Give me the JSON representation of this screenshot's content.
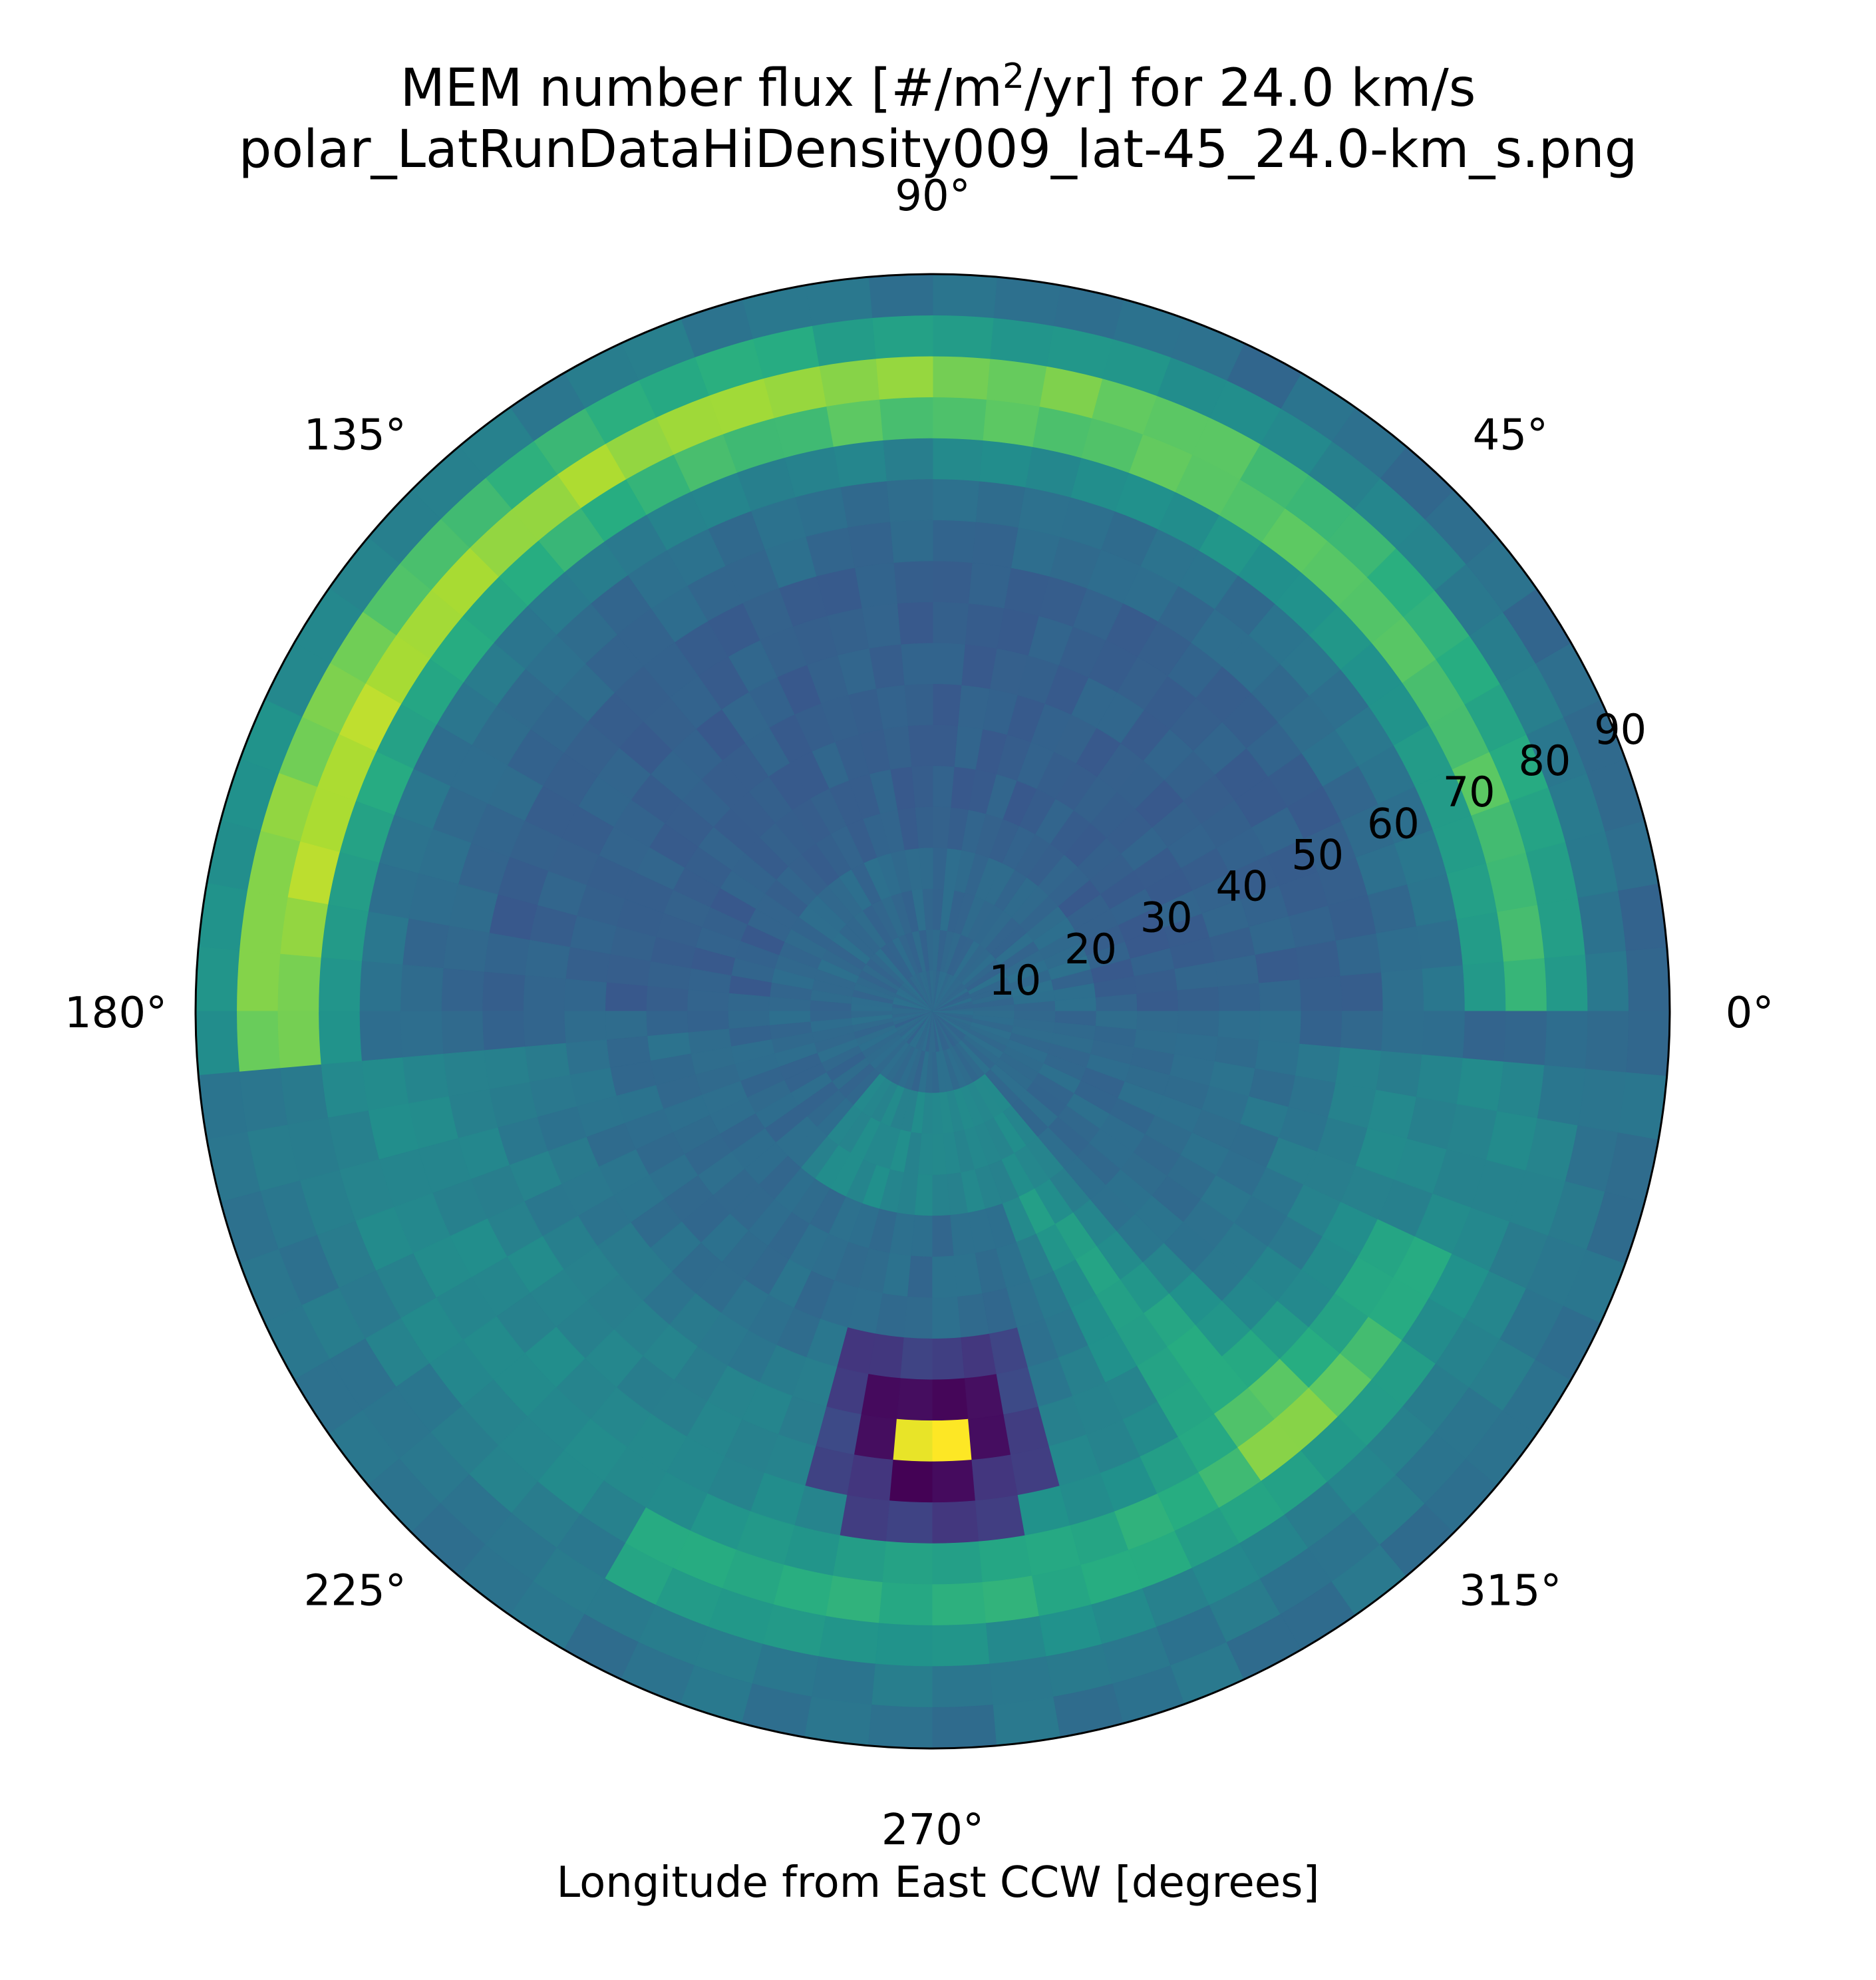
{
  "chart_data": {
    "type": "heatmap",
    "projection": "polar",
    "title_prefix": "MEM number flux [#/m",
    "title_sup": "2",
    "title_suffix": "/yr] for 24.0 km/s",
    "subtitle": "polar_LatRunDataHiDensity009_lat-45_24.0-km_s.png",
    "xlabel": "Longitude from East CCW [degrees]",
    "theta_tick_labels": [
      "0°",
      "45°",
      "90°",
      "135°",
      "180°",
      "225°",
      "270°",
      "315°"
    ],
    "theta_ticks_deg": [
      0,
      45,
      90,
      135,
      180,
      225,
      270,
      315
    ],
    "r_tick_labels": [
      "10",
      "20",
      "30",
      "40",
      "50",
      "60",
      "70",
      "80",
      "90"
    ],
    "r_ticks": [
      10,
      20,
      30,
      40,
      50,
      60,
      70,
      80,
      90
    ],
    "r_range": [
      0,
      90
    ],
    "theta_range": [
      0,
      360
    ],
    "bin_size_deg": 5,
    "colormap": "viridis",
    "grid": false,
    "features": [
      {
        "name": "ring band",
        "r_range": [
          60,
          85
        ],
        "theta_range": [
          0,
          180
        ],
        "peak_theta": 170,
        "peak_r": 80,
        "relative_value": 0.88
      },
      {
        "name": "apex spot",
        "theta": 270,
        "r": 52,
        "relative_value": 1.0
      },
      {
        "name": "apex surrounding low",
        "theta": 270,
        "r": 52,
        "radius": 12,
        "relative_value": 0.0
      },
      {
        "name": "southern arc",
        "r_range": [
          60,
          80
        ],
        "theta_range": [
          250,
          330
        ],
        "relative_value": 0.65
      },
      {
        "name": "inner wedge",
        "r_range": [
          8,
          20
        ],
        "theta_range": [
          230,
          310
        ],
        "relative_value": 0.55
      }
    ],
    "colors": {
      "axis_edge": "#000000",
      "background": "#ffffff"
    }
  }
}
